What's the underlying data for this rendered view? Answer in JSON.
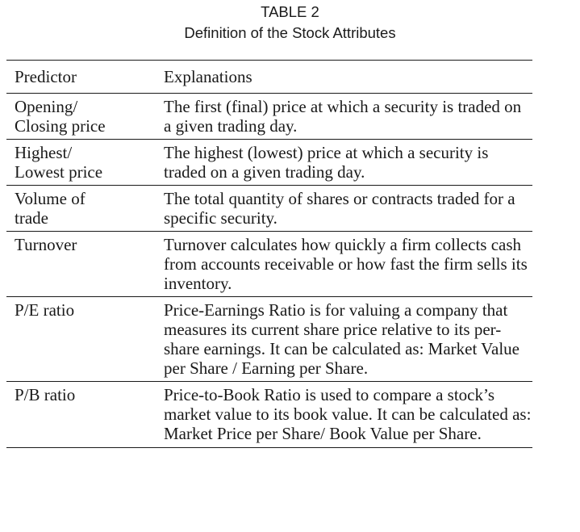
{
  "table": {
    "label": "TABLE 2",
    "title": "Definition of the Stock Attributes",
    "columns": [
      "Predictor",
      "Explanations"
    ],
    "rows": [
      {
        "predictor": "Opening/\nClosing price",
        "explanation": "The first (final) price at which a security is traded on a given trading day."
      },
      {
        "predictor": "Highest/\nLowest price",
        "explanation": "The highest (lowest) price at which a security is traded on a given trading day."
      },
      {
        "predictor": "Volume of\ntrade",
        "explanation": "The total quantity of shares or contracts traded for a specific security."
      },
      {
        "predictor": "Turnover",
        "explanation": "Turnover calculates how quickly a firm collects cash from accounts receivable or how fast the firm sells its inventory."
      },
      {
        "predictor": "P/E ratio",
        "explanation": "Price-Earnings Ratio is for valuing a company that measures its current share price relative to its per-share earnings. It can be calculated as: Market Value per Share / Earning per Share."
      },
      {
        "predictor": "P/B ratio",
        "explanation": "Price-to-Book Ratio is used to compare a stock’s market value to its book value. It can be calculated as: Market Price per Share/ Book Value per Share."
      }
    ]
  }
}
